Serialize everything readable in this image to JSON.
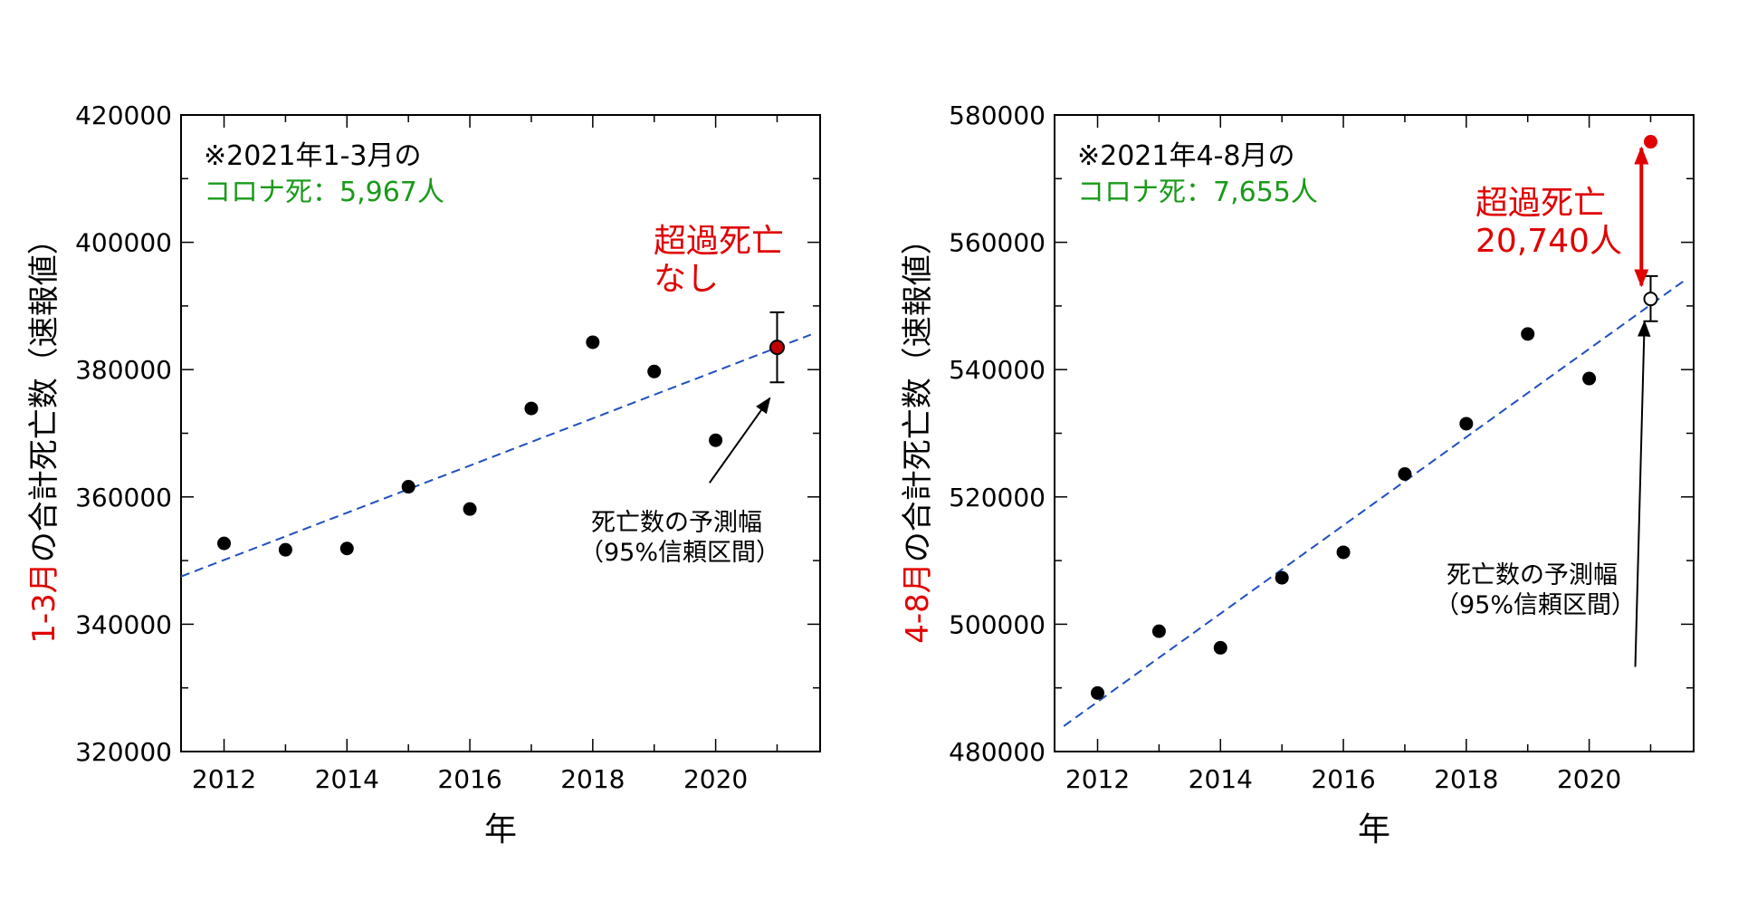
{
  "colors": {
    "point": "#000000",
    "trend": "#1f4fbf",
    "highlight": "#e00000",
    "covid": "#1a9a1a"
  },
  "chart_data": [
    {
      "type": "scatter",
      "title": "",
      "xlabel": "年",
      "ylabel_prefix": "1-3月",
      "ylabel_rest": "の合計死亡数（速報値）",
      "xlim": [
        2011.3,
        2021.7
      ],
      "ylim": [
        320000,
        420000
      ],
      "xticks": [
        2012,
        2014,
        2016,
        2018,
        2020
      ],
      "yticks": [
        320000,
        340000,
        360000,
        380000,
        400000,
        420000
      ],
      "points": [
        {
          "x": 2012,
          "y": 352700
        },
        {
          "x": 2013,
          "y": 351700
        },
        {
          "x": 2014,
          "y": 351900
        },
        {
          "x": 2015,
          "y": 361600
        },
        {
          "x": 2016,
          "y": 358100
        },
        {
          "x": 2017,
          "y": 373900
        },
        {
          "x": 2018,
          "y": 384300
        },
        {
          "x": 2019,
          "y": 379700
        },
        {
          "x": 2020,
          "y": 368900
        }
      ],
      "trend": [
        [
          2011.3,
          347500
        ],
        [
          2021.55,
          385500
        ]
      ],
      "prediction": {
        "x": 2021,
        "y": 383500,
        "low": 378000,
        "high": 389000
      },
      "observed": {
        "x": 2021,
        "y": 383500
      },
      "note_line1": "※2021年1-3月の",
      "note_line2": "コロナ死：5,967人",
      "excess_line1": "超過死亡",
      "excess_line2": "なし",
      "arrow_label_line1": "死亡数の予測幅",
      "arrow_label_line2": "（95%信頼区間）",
      "arrow_from": [
        2019.9,
        362200
      ],
      "arrow_to": [
        2020.88,
        375500
      ],
      "excess_arrow": null
    },
    {
      "type": "scatter",
      "title": "",
      "xlabel": "年",
      "ylabel_prefix": "4-8月",
      "ylabel_rest": "の合計死亡数（速報値）",
      "xlim": [
        2011.3,
        2021.7
      ],
      "ylim": [
        480000,
        580000
      ],
      "xticks": [
        2012,
        2014,
        2016,
        2018,
        2020
      ],
      "yticks": [
        480000,
        500000,
        520000,
        540000,
        560000,
        580000
      ],
      "points": [
        {
          "x": 2012,
          "y": 489200
        },
        {
          "x": 2013,
          "y": 498900
        },
        {
          "x": 2014,
          "y": 496300
        },
        {
          "x": 2015,
          "y": 507300
        },
        {
          "x": 2016,
          "y": 511300
        },
        {
          "x": 2017,
          "y": 523600
        },
        {
          "x": 2018,
          "y": 531500
        },
        {
          "x": 2019,
          "y": 545600
        },
        {
          "x": 2020,
          "y": 538600
        }
      ],
      "trend": [
        [
          2011.45,
          484000
        ],
        [
          2021.55,
          554000
        ]
      ],
      "prediction": {
        "x": 2021,
        "y": 551100,
        "low": 547600,
        "high": 554700
      },
      "observed": {
        "x": 2021,
        "y": 575800
      },
      "note_line1": "※2021年4-8月の",
      "note_line2": "コロナ死：7,655人",
      "excess_line1": "超過死亡",
      "excess_line2": "20,740人",
      "arrow_label_line1": "死亡数の予測幅",
      "arrow_label_line2": "（95%信頼区間）",
      "arrow_from": [
        2020.75,
        493300
      ],
      "arrow_to": [
        2020.9,
        547500
      ],
      "excess_arrow": {
        "x": 2020.85,
        "from": 574800,
        "to": 553200
      }
    }
  ]
}
